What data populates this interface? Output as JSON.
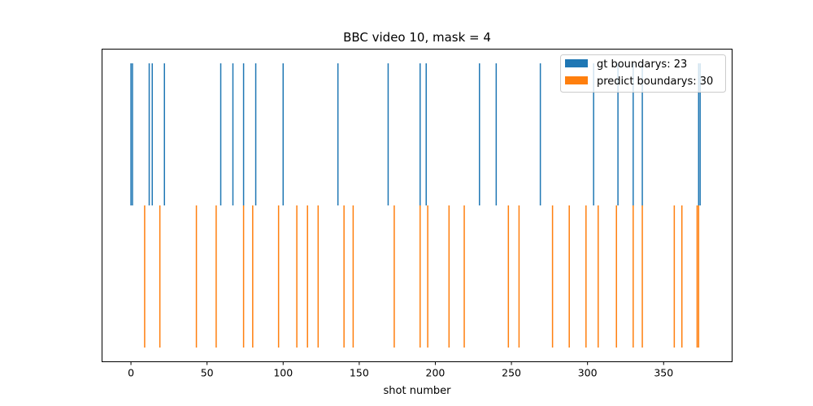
{
  "chart_data": {
    "type": "bar",
    "title": "BBC video 10, mask = 4",
    "xlabel": "shot number",
    "ylabel": "",
    "xlim": [
      -19,
      395
    ],
    "xticks": [
      0,
      50,
      100,
      150,
      200,
      250,
      300,
      350
    ],
    "grid": false,
    "legend_position": "top-right",
    "series": [
      {
        "name": "gt boundarys: 23",
        "color": "#1f77b4",
        "band": "upper",
        "x": [
          0,
          1,
          12,
          14,
          22,
          59,
          67,
          74,
          82,
          100,
          136,
          169,
          190,
          194,
          229,
          240,
          269,
          304,
          320,
          330,
          336,
          373,
          374
        ]
      },
      {
        "name": "predict boundarys: 30",
        "color": "#ff7f0e",
        "band": "lower",
        "x": [
          9,
          19,
          43,
          56,
          74,
          80,
          97,
          109,
          116,
          123,
          140,
          146,
          173,
          190,
          195,
          209,
          219,
          248,
          255,
          277,
          288,
          299,
          307,
          319,
          330,
          336,
          357,
          362,
          372,
          373
        ]
      }
    ]
  }
}
